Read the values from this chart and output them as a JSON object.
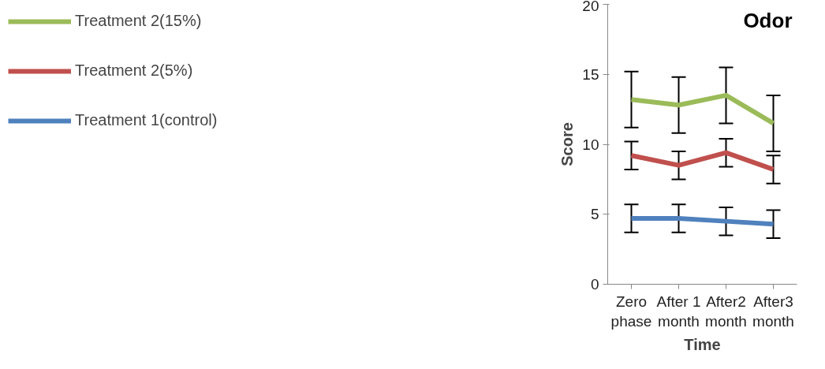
{
  "chart_data": {
    "type": "line",
    "title": "Odor",
    "xlabel": "Time",
    "ylabel": "Score",
    "categories": [
      "Zero phase",
      "After 1 month",
      "After2 month",
      "After3 month"
    ],
    "ylim": [
      0,
      20
    ],
    "yticks": [
      0,
      5,
      10,
      15,
      20
    ],
    "grid": false,
    "legend": "left",
    "marker": "none",
    "line_style": "solid",
    "series": [
      {
        "name": "Treatment 2(15%)",
        "color": "#9bbb59",
        "values": [
          13.2,
          12.8,
          13.5,
          11.5
        ],
        "errors": [
          2,
          2,
          2,
          2
        ]
      },
      {
        "name": "Treatment 2(5%)",
        "color": "#c0504d",
        "values": [
          9.2,
          8.5,
          9.4,
          8.2
        ],
        "errors": [
          1,
          1,
          1,
          1
        ]
      },
      {
        "name": "Treatment 1(control)",
        "color": "#4f81bd",
        "values": [
          4.7,
          4.7,
          4.5,
          4.3
        ],
        "errors": [
          1,
          1,
          1,
          1
        ]
      }
    ]
  }
}
